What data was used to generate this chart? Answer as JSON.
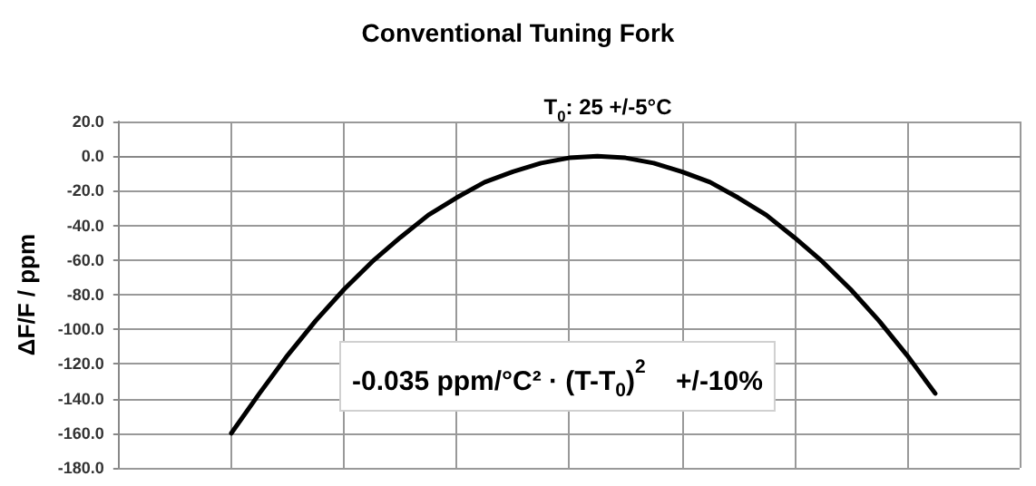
{
  "chart_data": {
    "type": "line",
    "title": "Conventional Tuning Fork",
    "subtitle": "T$_{0}$: 25 +/-5°C",
    "ylabel": "ΔF/F / ppm",
    "annotations": [
      "-0.035 ppm/°C² · (T-T$_{0}$)$^{2}$    +/-10%"
    ],
    "categories": [
      null,
      null,
      null,
      null,
      null,
      null,
      null,
      null,
      null,
      null,
      null,
      null,
      null,
      null,
      null,
      null,
      null,
      null,
      null,
      null,
      null,
      null,
      null,
      null,
      null,
      null,
      null,
      null,
      null,
      null,
      null,
      null,
      null
    ],
    "series": [
      {
        "color": "#000000",
        "values": [
          null,
          null,
          null,
          null,
          -160,
          -137,
          -115,
          -95,
          -77,
          -61,
          -47,
          -34,
          -24,
          -15,
          -9,
          -4,
          -1,
          0,
          -1,
          -4,
          -9,
          -15,
          -24,
          -34,
          -47,
          -61,
          -77,
          -95,
          -115,
          -137,
          null,
          null,
          null
        ]
      }
    ],
    "ylim": [
      -180,
      20
    ],
    "yticks": [
      {
        "value": -180,
        "label": "-180.0"
      },
      {
        "value": -160,
        "label": "-160.0"
      },
      {
        "value": -140,
        "label": "-140.0"
      },
      {
        "value": -120,
        "label": "-120.0"
      },
      {
        "value": -100,
        "label": "-100.0"
      },
      {
        "value": -80,
        "label": "-80.0"
      },
      {
        "value": -60,
        "label": "-60.0"
      },
      {
        "value": -40,
        "label": "-40.0"
      },
      {
        "value": -20,
        "label": "-20.0"
      },
      {
        "value": 0,
        "label": "0.0"
      },
      {
        "value": 20,
        "label": "20.0"
      }
    ],
    "tick_labels": "y",
    "grid": true,
    "marker": "none",
    "line_style": "solid"
  }
}
